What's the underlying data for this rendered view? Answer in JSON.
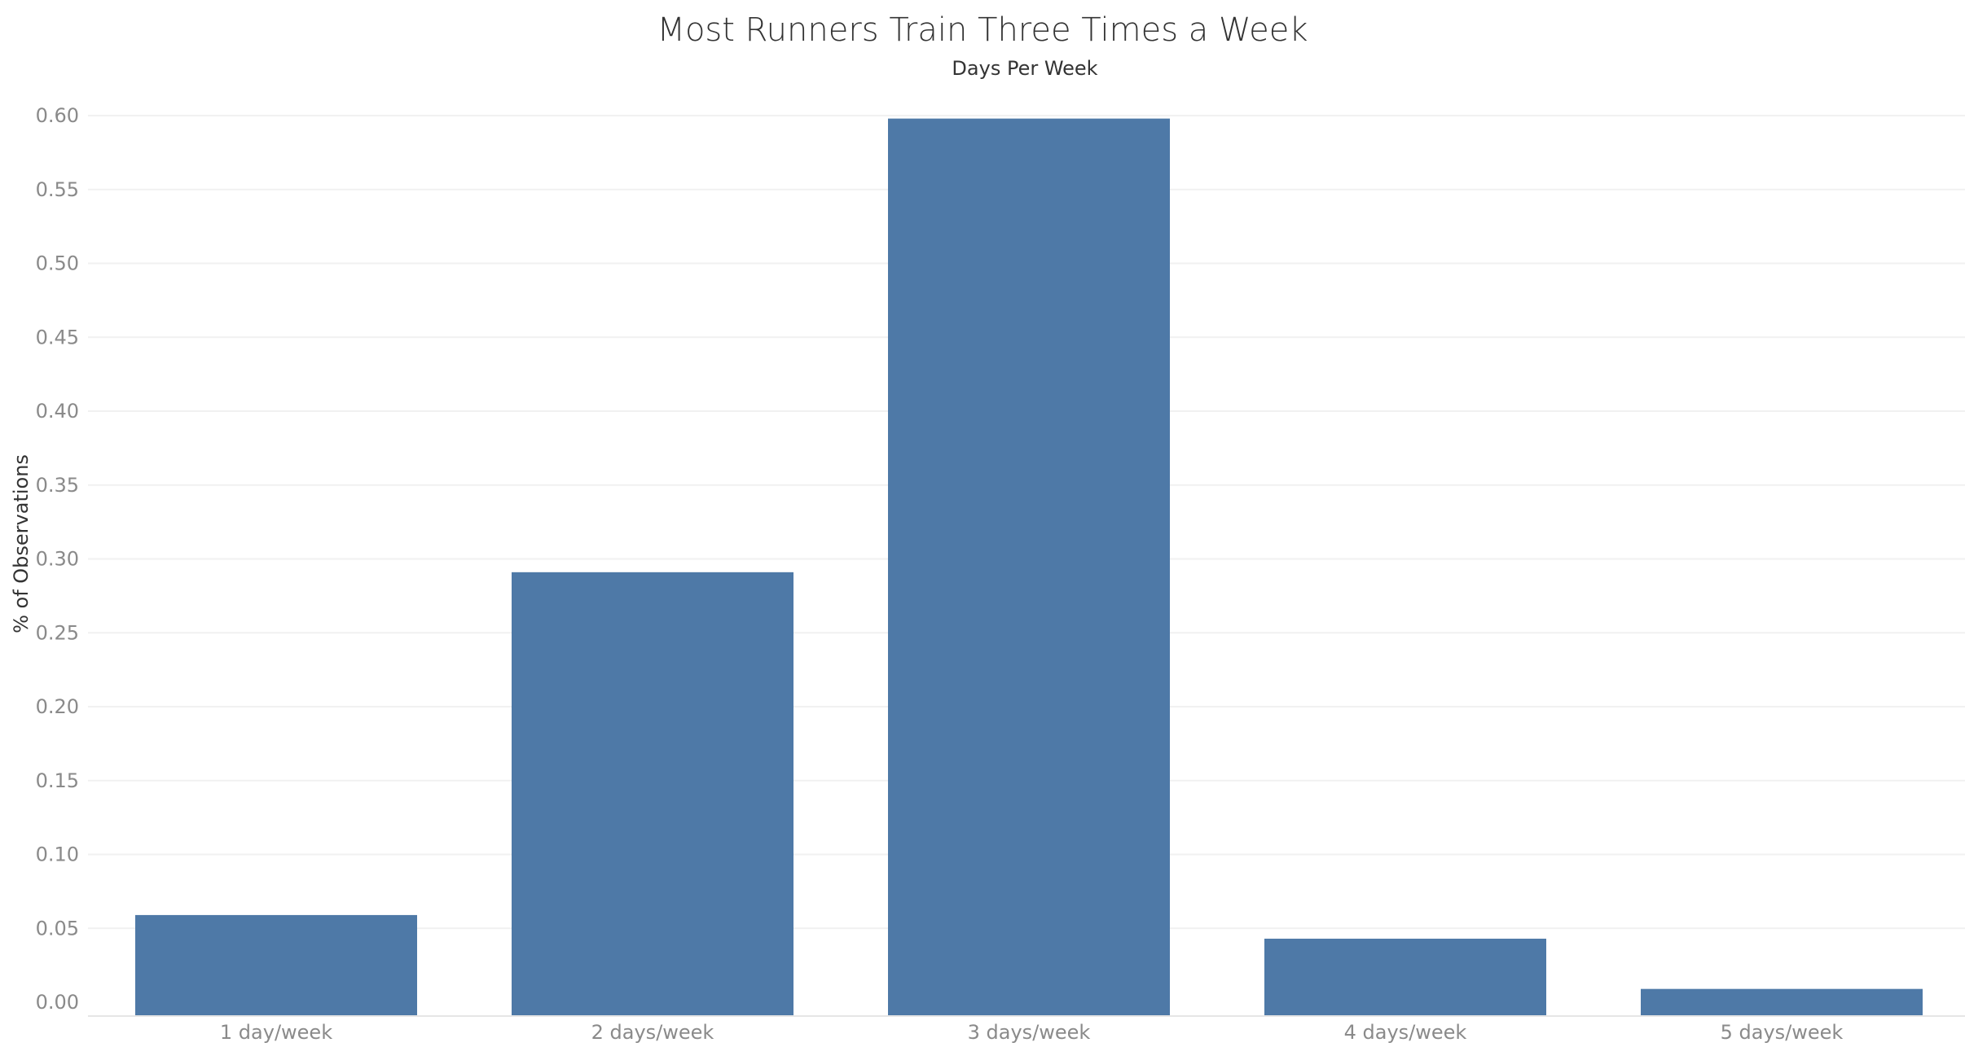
{
  "chart_data": {
    "type": "bar",
    "title": "Most Runners Train Three Times a Week",
    "xlabel": "Days Per Week",
    "ylabel": "% of Observations",
    "categories": [
      "1 day/week",
      "2 days/week",
      "3 days/week",
      "4 days/week",
      "5 days/week"
    ],
    "values": [
      0.059,
      0.291,
      0.598,
      0.043,
      0.009
    ],
    "ylim": [
      0,
      0.6
    ],
    "yticks": [
      "0.00",
      "0.05",
      "0.10",
      "0.15",
      "0.20",
      "0.25",
      "0.30",
      "0.35",
      "0.40",
      "0.45",
      "0.50",
      "0.55",
      "0.60"
    ],
    "grid": true,
    "legend": "none",
    "bar_color": "#4e79a7"
  }
}
